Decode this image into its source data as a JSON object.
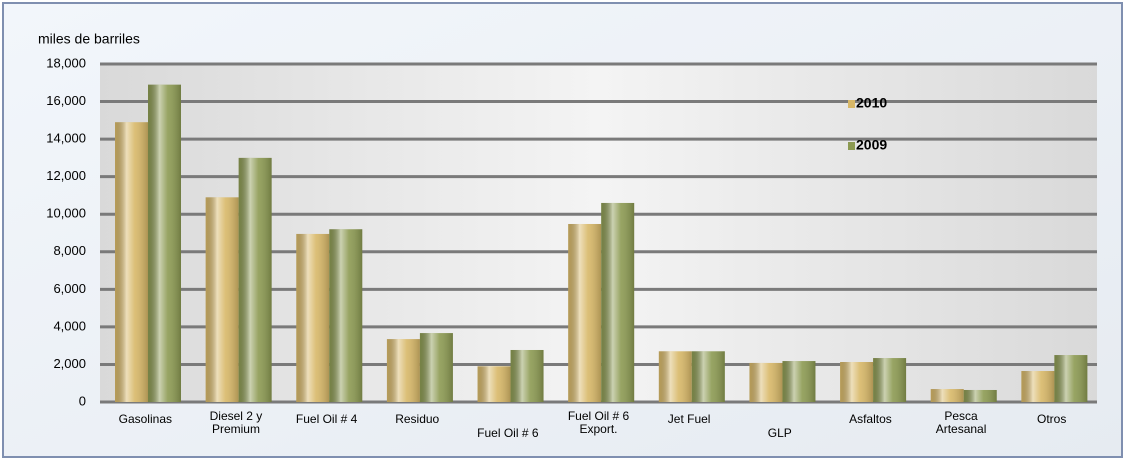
{
  "chart_data": {
    "type": "bar",
    "y_label": "miles de barriles",
    "categories": [
      "Gasolinas",
      "Diesel 2 y\nPremium",
      "Fuel Oil    # 4",
      "Residuo",
      "Fuel Oil # 6",
      "Fuel Oil # 6\nExport.",
      "Jet Fuel",
      "GLP",
      "Asfaltos",
      "Pesca\nArtesanal",
      "Otros"
    ],
    "series": [
      {
        "name": "2010",
        "color": "#d8b868",
        "values": [
          14900,
          10900,
          8950,
          3350,
          1900,
          9480,
          2700,
          2080,
          2130,
          690,
          1650
        ]
      },
      {
        "name": "2009",
        "color": "#8c9a52",
        "values": [
          16900,
          13000,
          9200,
          3670,
          2770,
          10600,
          2700,
          2180,
          2340,
          640,
          2500
        ]
      }
    ],
    "ylim": [
      0,
      18000
    ],
    "yticks": [
      0,
      {
        "value": 2000,
        "label": "2,000"
      },
      {
        "value": 4000,
        "label": "4,000"
      },
      {
        "value": 6000,
        "label": "6,000"
      },
      {
        "value": 8000,
        "label": "8,000"
      },
      {
        "value": 10000,
        "label": "10,000"
      },
      {
        "value": 12000,
        "label": "12,000"
      },
      {
        "value": 14000,
        "label": "14,000"
      },
      {
        "value": 16000,
        "label": "16,000"
      },
      {
        "value": 18000,
        "label": "18,000"
      }
    ],
    "grid": true
  }
}
